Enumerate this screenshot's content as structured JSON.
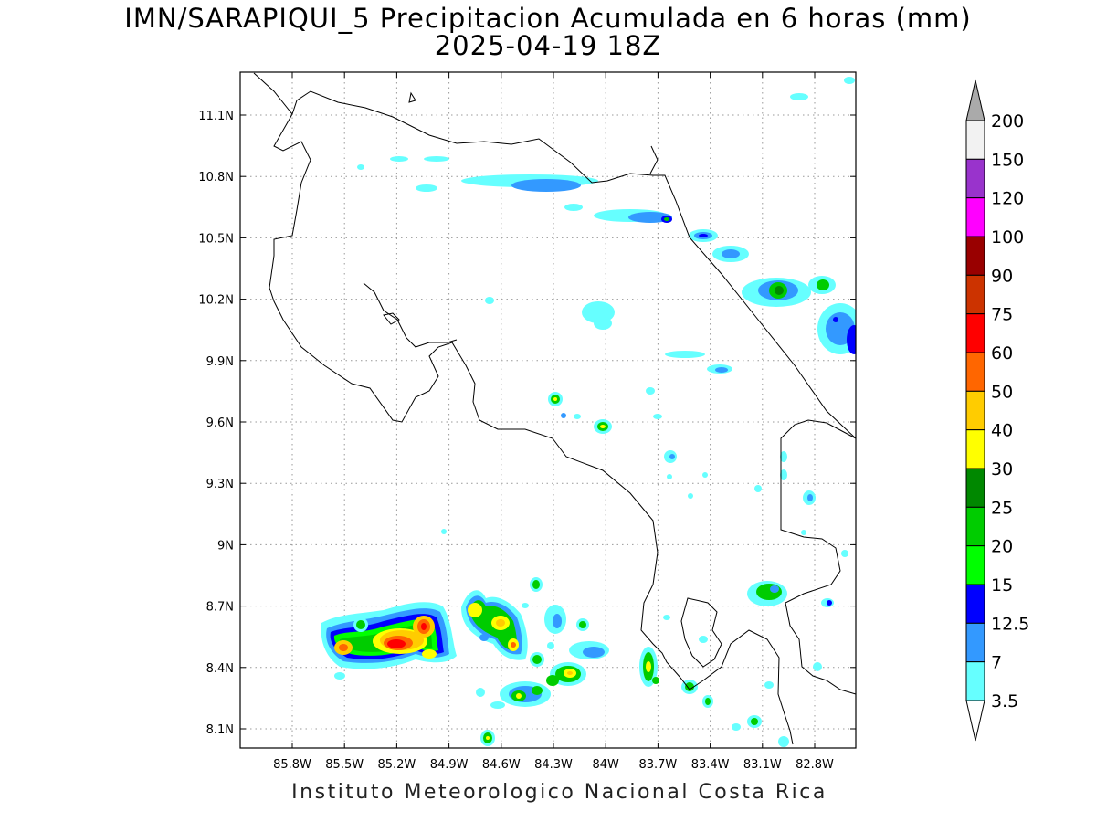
{
  "title": {
    "line1": "IMN/SARAPIQUI_5 Precipitacion Acumulada en 6 horas (mm)",
    "line2": "2025-04-19 18Z"
  },
  "credit": "Instituto Meteorologico Nacional Costa Rica",
  "map": {
    "lon_range": [
      -86.0,
      -83.0
    ],
    "lat_range": [
      8.0,
      11.3
    ],
    "lon_ticks": [
      "85.8W",
      "85.5W",
      "85.2W",
      "84.9W",
      "84.6W",
      "84.3W",
      "84W",
      "83.7W",
      "83.4W",
      "83.1W",
      "82.8W"
    ],
    "lat_ticks": [
      "8.1N",
      "8.4N",
      "8.7N",
      "9N",
      "9.3N",
      "9.6N",
      "9.9N",
      "10.2N",
      "10.5N",
      "10.8N",
      "11.1N"
    ],
    "grid": true
  },
  "colorbar": {
    "levels": [
      "3.5",
      "7",
      "12.5",
      "15",
      "20",
      "25",
      "30",
      "40",
      "50",
      "60",
      "75",
      "90",
      "100",
      "120",
      "150",
      "200"
    ],
    "colors": [
      "#ffffff",
      "#66ffff",
      "#3399ff",
      "#0000ff",
      "#00ff00",
      "#00cc00",
      "#008800",
      "#ffff00",
      "#ffcc00",
      "#ff6600",
      "#ff0000",
      "#cc3300",
      "#990000",
      "#ff00ff",
      "#9933cc",
      "#f2f2f2",
      "#aaaaaa"
    ]
  }
}
